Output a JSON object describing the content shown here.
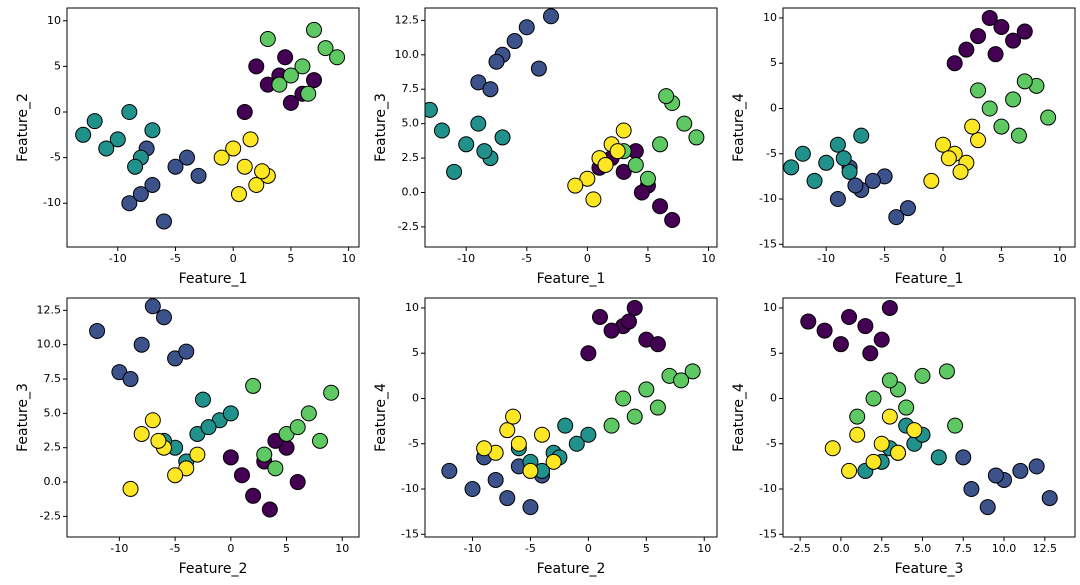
{
  "chart_data": [
    {
      "type": "scatter",
      "x_label": "Feature_1",
      "y_label": "Feature_2",
      "xlim": [
        -14.4,
        10.9
      ],
      "ylim": [
        -14.8,
        11.4
      ],
      "xticks": [
        -10,
        -5,
        0,
        5,
        10
      ],
      "yticks": [
        -10,
        -5,
        0,
        5,
        10
      ],
      "series": [
        {
          "color": "#440154",
          "x": [
            3,
            5,
            2,
            6,
            4,
            1,
            7,
            4.5
          ],
          "y": [
            3,
            1,
            5,
            2,
            4,
            0,
            3.5,
            6
          ]
        },
        {
          "color": "#3b528b",
          "x": [
            -7,
            -5,
            -9,
            -6,
            -4,
            -8,
            -3,
            -7.5
          ],
          "y": [
            -8,
            -6,
            -10,
            -12,
            -5,
            -9,
            -7,
            -4
          ]
        },
        {
          "color": "#21918c",
          "x": [
            -10,
            -12,
            -8,
            -9,
            -11,
            -7,
            -13,
            -8.5
          ],
          "y": [
            -3,
            -1,
            -5,
            0,
            -4,
            -2,
            -2.5,
            -6
          ]
        },
        {
          "color": "#5ec962",
          "x": [
            6,
            8,
            4,
            7,
            5,
            9,
            3,
            6.5
          ],
          "y": [
            5,
            7,
            3,
            9,
            4,
            6,
            8,
            2
          ]
        },
        {
          "color": "#fde725",
          "x": [
            1,
            0,
            2,
            -1,
            3,
            1.5,
            0.5,
            2.5
          ],
          "y": [
            -6,
            -4,
            -8,
            -5,
            -7,
            -3,
            -9,
            -6.5
          ]
        }
      ]
    },
    {
      "type": "scatter",
      "x_label": "Feature_1",
      "y_label": "Feature_3",
      "xlim": [
        -13.4,
        10.7
      ],
      "ylim": [
        -3.96,
        13.4
      ],
      "xticks": [
        -10,
        -5,
        0,
        5,
        10
      ],
      "yticks": [
        -2.5,
        {
          "value": 0,
          "label": "0.0"
        },
        2.5,
        {
          "value": 5,
          "label": "5.0"
        },
        7.5,
        {
          "value": 10,
          "label": "10.0"
        },
        12.5
      ],
      "series": [
        {
          "color": "#440154",
          "x": [
            3,
            5,
            2,
            6,
            4,
            1,
            7,
            4.5
          ],
          "y": [
            1.5,
            0.5,
            2.5,
            -1,
            3,
            1.8,
            -2,
            0
          ]
        },
        {
          "color": "#3b528b",
          "x": [
            -7,
            -5,
            -9,
            -6,
            -4,
            -8,
            -3,
            -7.5
          ],
          "y": [
            10,
            12,
            8,
            11,
            9,
            7.5,
            12.8,
            9.5
          ]
        },
        {
          "color": "#21918c",
          "x": [
            -10,
            -12,
            -8,
            -9,
            -11,
            -7,
            -13,
            -8.5
          ],
          "y": [
            3.5,
            4.5,
            2.5,
            5,
            1.5,
            4,
            6,
            3
          ]
        },
        {
          "color": "#5ec962",
          "x": [
            6,
            8,
            4,
            7,
            5,
            9,
            3,
            6.5
          ],
          "y": [
            3.5,
            5,
            2,
            6.5,
            1,
            4,
            3,
            7
          ]
        },
        {
          "color": "#fde725",
          "x": [
            1,
            0,
            2,
            -1,
            3,
            1.5,
            0.5,
            2.5
          ],
          "y": [
            2.5,
            1,
            3.5,
            0.5,
            4.5,
            2,
            -0.5,
            3
          ]
        }
      ]
    },
    {
      "type": "scatter",
      "x_label": "Feature_1",
      "y_label": "Feature_4",
      "xlim": [
        -13.7,
        11.3
      ],
      "ylim": [
        -15.3,
        11.1
      ],
      "xticks": [
        -10,
        -5,
        0,
        5,
        10
      ],
      "yticks": [
        -15,
        -10,
        -5,
        0,
        5,
        10
      ],
      "series": [
        {
          "color": "#440154",
          "x": [
            3,
            5,
            2,
            6,
            4,
            1,
            7,
            4.5
          ],
          "y": [
            8,
            9,
            6.5,
            7.5,
            10,
            5,
            8.5,
            6
          ]
        },
        {
          "color": "#3b528b",
          "x": [
            -7,
            -5,
            -9,
            -6,
            -4,
            -8,
            -3,
            -7.5
          ],
          "y": [
            -9,
            -7.5,
            -10,
            -8,
            -12,
            -6.5,
            -11,
            -8.5
          ]
        },
        {
          "color": "#21918c",
          "x": [
            -10,
            -12,
            -8,
            -9,
            -11,
            -7,
            -13,
            -8.5
          ],
          "y": [
            -6,
            -5,
            -7,
            -4,
            -8,
            -3,
            -6.5,
            -5.5
          ]
        },
        {
          "color": "#5ec962",
          "x": [
            6,
            8,
            4,
            7,
            5,
            9,
            3,
            6.5
          ],
          "y": [
            1,
            2.5,
            0,
            3,
            -2,
            -1,
            2,
            -3
          ]
        },
        {
          "color": "#fde725",
          "x": [
            1,
            0,
            2,
            -1,
            3,
            1.5,
            0.5,
            2.5
          ],
          "y": [
            -5,
            -4,
            -6,
            -8,
            -3.5,
            -7,
            -5.5,
            -2
          ]
        }
      ]
    },
    {
      "type": "scatter",
      "x_label": "Feature_2",
      "y_label": "Feature_3",
      "xlim": [
        -14.7,
        11.5
      ],
      "ylim": [
        -4,
        13.4
      ],
      "xticks": [
        -10,
        -5,
        0,
        5,
        10
      ],
      "yticks": [
        -2.5,
        {
          "value": 0,
          "label": "0.0"
        },
        2.5,
        {
          "value": 5,
          "label": "5.0"
        },
        7.5,
        {
          "value": 10,
          "label": "10.0"
        },
        12.5
      ],
      "series": [
        {
          "color": "#440154",
          "x": [
            3,
            1,
            5,
            2,
            4,
            0,
            3.5,
            6
          ],
          "y": [
            1.5,
            0.5,
            2.5,
            -1,
            3,
            1.8,
            -2,
            0
          ]
        },
        {
          "color": "#3b528b",
          "x": [
            -8,
            -6,
            -10,
            -12,
            -5,
            -9,
            -7,
            -4
          ],
          "y": [
            10,
            12,
            8,
            11,
            9,
            7.5,
            12.8,
            9.5
          ]
        },
        {
          "color": "#21918c",
          "x": [
            -3,
            -1,
            -5,
            0,
            -4,
            -2,
            -2.5,
            -6
          ],
          "y": [
            3.5,
            4.5,
            2.5,
            5,
            1.5,
            4,
            6,
            3
          ]
        },
        {
          "color": "#5ec962",
          "x": [
            5,
            7,
            3,
            9,
            4,
            6,
            8,
            2
          ],
          "y": [
            3.5,
            5,
            2,
            6.5,
            1,
            4,
            3,
            7
          ]
        },
        {
          "color": "#fde725",
          "x": [
            -6,
            -4,
            -8,
            -5,
            -7,
            -3,
            -9,
            -6.5
          ],
          "y": [
            2.5,
            1,
            3.5,
            0.5,
            4.5,
            2,
            -0.5,
            3
          ]
        }
      ]
    },
    {
      "type": "scatter",
      "x_label": "Feature_2",
      "y_label": "Feature_4",
      "xlim": [
        -14.1,
        11.1
      ],
      "ylim": [
        -15.3,
        11.1
      ],
      "xticks": [
        -10,
        -5,
        0,
        5,
        10
      ],
      "yticks": [
        -15,
        -10,
        -5,
        0,
        5,
        10
      ],
      "series": [
        {
          "color": "#440154",
          "x": [
            3,
            1,
            5,
            2,
            4,
            0,
            3.5,
            6
          ],
          "y": [
            8,
            9,
            6.5,
            7.5,
            10,
            5,
            8.5,
            6
          ]
        },
        {
          "color": "#3b528b",
          "x": [
            -8,
            -6,
            -10,
            -12,
            -5,
            -9,
            -7,
            -4
          ],
          "y": [
            -9,
            -7.5,
            -10,
            -8,
            -12,
            -6.5,
            -11,
            -8.5
          ]
        },
        {
          "color": "#21918c",
          "x": [
            -3,
            -1,
            -5,
            0,
            -4,
            -2,
            -2.5,
            -6
          ],
          "y": [
            -6,
            -5,
            -7,
            -4,
            -8,
            -3,
            -6.5,
            -5.5
          ]
        },
        {
          "color": "#5ec962",
          "x": [
            5,
            7,
            3,
            9,
            4,
            6,
            8,
            2
          ],
          "y": [
            1,
            2.5,
            0,
            3,
            -2,
            -1,
            2,
            -3
          ]
        },
        {
          "color": "#fde725",
          "x": [
            -6,
            -4,
            -8,
            -5,
            -7,
            -3,
            -9,
            -6.5
          ],
          "y": [
            -5,
            -4,
            -6,
            -8,
            -3.5,
            -7,
            -5.5,
            -2
          ]
        }
      ]
    },
    {
      "type": "scatter",
      "x_label": "Feature_3",
      "y_label": "Feature_4",
      "xlim": [
        -3.55,
        14.35
      ],
      "ylim": [
        -15.3,
        11.1
      ],
      "xticks": [
        -2.5,
        {
          "value": 0,
          "label": "0.0"
        },
        2.5,
        {
          "value": 5,
          "label": "5.0"
        },
        7.5,
        {
          "value": 10,
          "label": "10.0"
        },
        12.5
      ],
      "yticks": [
        -15,
        -10,
        -5,
        0,
        5,
        10
      ],
      "series": [
        {
          "color": "#440154",
          "x": [
            1.5,
            0.5,
            2.5,
            -1,
            3,
            1.8,
            -2,
            0
          ],
          "y": [
            8,
            9,
            6.5,
            7.5,
            10,
            5,
            8.5,
            6
          ]
        },
        {
          "color": "#3b528b",
          "x": [
            10,
            12,
            8,
            11,
            9,
            7.5,
            12.8,
            9.5
          ],
          "y": [
            -9,
            -7.5,
            -10,
            -8,
            -12,
            -6.5,
            -11,
            -8.5
          ]
        },
        {
          "color": "#21918c",
          "x": [
            3.5,
            4.5,
            2.5,
            5,
            1.5,
            4,
            6,
            3
          ],
          "y": [
            -6,
            -5,
            -7,
            -4,
            -8,
            -3,
            -6.5,
            -5.5
          ]
        },
        {
          "color": "#5ec962",
          "x": [
            3.5,
            5,
            2,
            6.5,
            1,
            4,
            3,
            7
          ],
          "y": [
            1,
            2.5,
            0,
            3,
            -2,
            -1,
            2,
            -3
          ]
        },
        {
          "color": "#fde725",
          "x": [
            2.5,
            1,
            3.5,
            0.5,
            4.5,
            2,
            -0.5,
            3
          ],
          "y": [
            -5,
            -4,
            -6,
            -8,
            -3.5,
            -7,
            -5.5,
            -2
          ]
        }
      ]
    }
  ]
}
